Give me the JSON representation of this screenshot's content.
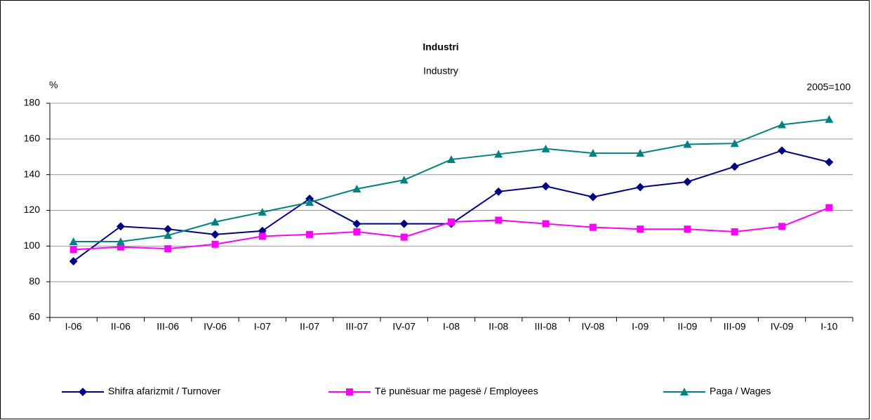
{
  "chart_data": {
    "type": "line",
    "title": "Industri",
    "subtitle": "Industry",
    "y_label": "%",
    "annotation": "2005=100",
    "categories": [
      "I-06",
      "II-06",
      "III-06",
      "IV-06",
      "I-07",
      "II-07",
      "III-07",
      "IV-07",
      "I-08",
      "II-08",
      "III-08",
      "IV-08",
      "I-09",
      "II-09",
      "III-09",
      "IV-09",
      "I-10"
    ],
    "series": [
      {
        "name": "Shifra afarizmit / Turnover",
        "color": "#000080",
        "marker": "diamond",
        "values": [
          91.5,
          111,
          109.5,
          106.5,
          108.5,
          126.5,
          112.5,
          112.5,
          112.5,
          130.5,
          133.5,
          127.5,
          133,
          136,
          144.5,
          153.5,
          147
        ]
      },
      {
        "name": "Të punësuar me pagesë / Employees",
        "color": "#ff00ff",
        "marker": "square",
        "values": [
          98,
          99.5,
          98.5,
          101,
          105.5,
          106.5,
          108,
          105,
          113.5,
          114.5,
          112.5,
          110.5,
          109.5,
          109.5,
          108,
          111,
          121.5
        ]
      },
      {
        "name": "Paga / Wages",
        "color": "#008080",
        "marker": "triangle",
        "values": [
          102.5,
          102.5,
          106,
          113.5,
          119,
          124.5,
          132,
          137,
          148.5,
          151.5,
          154.5,
          152,
          152,
          157,
          157.5,
          168,
          171
        ]
      }
    ],
    "ylim": [
      60,
      180
    ],
    "yticks": [
      60,
      80,
      100,
      120,
      140,
      160,
      180
    ],
    "grid": true,
    "legend": "bottom"
  }
}
